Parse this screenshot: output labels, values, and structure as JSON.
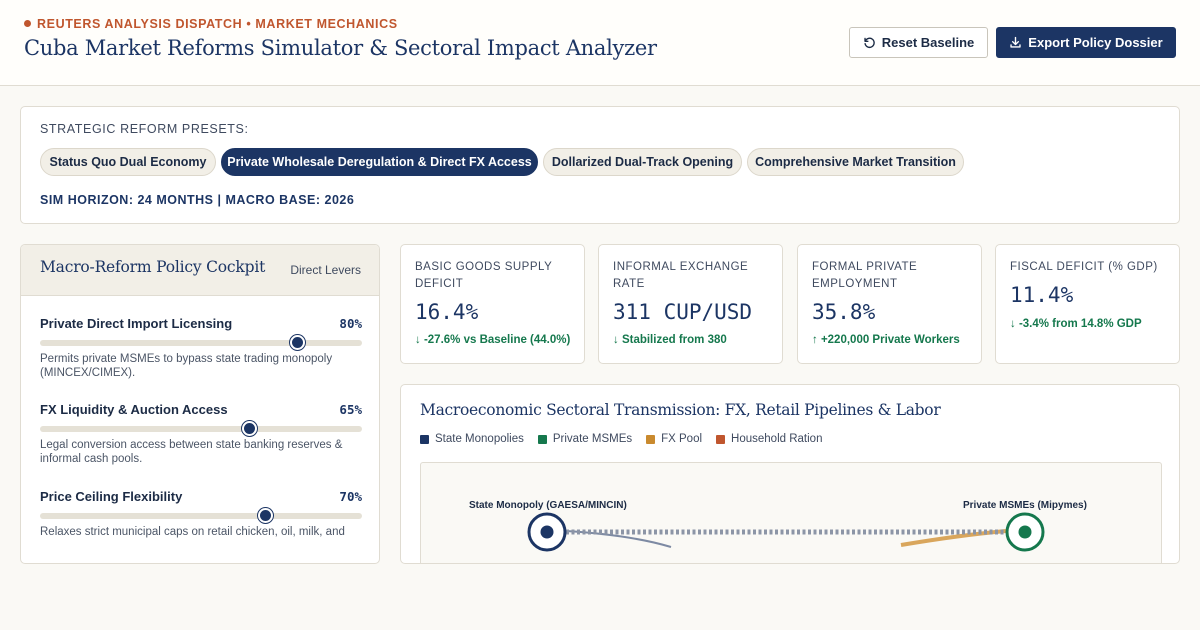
{
  "header": {
    "kicker": "REUTERS ANALYSIS DISPATCH • MARKET MECHANICS",
    "title": "Cuba Market Reforms Simulator & Sectoral Impact Analyzer",
    "reset_label": "Reset Baseline",
    "export_label": "Export Policy Dossier"
  },
  "presets": {
    "label": "STRATEGIC REFORM PRESETS:",
    "items": [
      {
        "label": "Status Quo Dual Economy",
        "active": false
      },
      {
        "label": "Private Wholesale Deregulation & Direct FX Access",
        "active": true
      },
      {
        "label": "Dollarized Dual-Track Opening",
        "active": false
      },
      {
        "label": "Comprehensive Market Transition",
        "active": false
      }
    ],
    "horizon": "SIM HORIZON: 24 MONTHS | MACRO BASE: 2026"
  },
  "cockpit": {
    "title": "Macro-Reform Policy Cockpit",
    "tag": "Direct Levers",
    "levers": [
      {
        "name": "Private Direct Import Licensing",
        "value_label": "80%",
        "value": 80,
        "desc": "Permits private MSMEs to bypass state trading monopoly (MINCEX/CIMEX)."
      },
      {
        "name": "FX Liquidity & Auction Access",
        "value_label": "65%",
        "value": 65,
        "desc": "Legal conversion access between state banking reserves & informal cash pools."
      },
      {
        "name": "Price Ceiling Flexibility",
        "value_label": "70%",
        "value": 70,
        "desc": "Relaxes strict municipal caps on retail chicken, oil, milk, and"
      }
    ]
  },
  "kpis": [
    {
      "label": "BASIC GOODS SUPPLY DEFICIT",
      "value": "16.4%",
      "delta": "↓ -27.6% vs Baseline (44.0%)"
    },
    {
      "label": "INFORMAL EXCHANGE RATE",
      "value": "311 CUP/USD",
      "delta": "↓ Stabilized from 380"
    },
    {
      "label": "FORMAL PRIVATE EMPLOYMENT",
      "value": "35.8%",
      "delta": "↑ +220,000 Private Workers"
    },
    {
      "label": "FISCAL DEFICIT (% GDP)",
      "value": "11.4%",
      "delta": "↓ -3.4% from 14.8% GDP"
    }
  ],
  "sector": {
    "title": "Macroeconomic Sectoral Transmission: FX, Retail Pipelines & Labor",
    "legend": [
      {
        "label": "State Monopolies",
        "color": "#1c3564"
      },
      {
        "label": "Private MSMEs",
        "color": "#15784d"
      },
      {
        "label": "FX Pool",
        "color": "#c98a2e"
      },
      {
        "label": "Household Ration",
        "color": "#c0562e"
      }
    ],
    "nodes": {
      "state": "State Monopoly (GAESA/MINCIN)",
      "private": "Private MSMEs (Mipymes)"
    }
  },
  "colors": {
    "navy": "#1c3564",
    "accent": "#c0562e",
    "positive": "#15784d",
    "gold": "#c98a2e"
  }
}
